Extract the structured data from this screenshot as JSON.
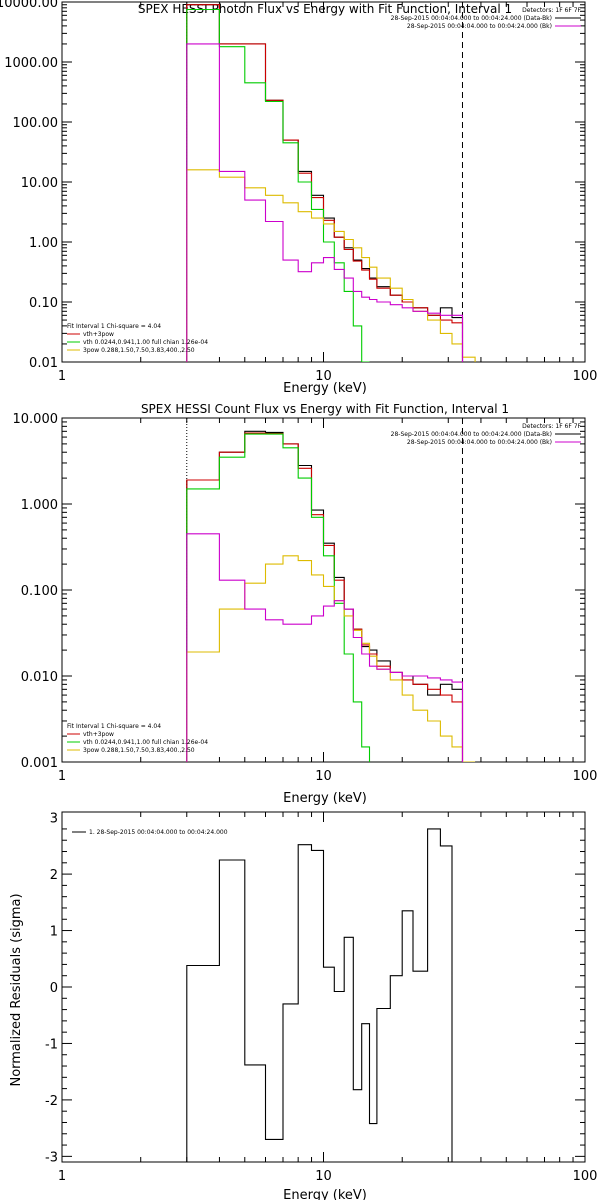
{
  "chart_data": [
    {
      "type": "line",
      "title": "SPEX HESSI Photon Flux vs Energy with Fit Function, Interval 1",
      "xlabel": "Energy (keV)",
      "ylabel": "",
      "xscale": "log",
      "yscale": "log",
      "xlim": [
        1,
        100
      ],
      "ylim": [
        0.01,
        10000
      ],
      "xticks": [
        1,
        10,
        100
      ],
      "xtick_labels": [
        "1",
        "10",
        "100"
      ],
      "yticks": [
        0.01,
        0.1,
        1,
        10,
        100,
        1000,
        10000
      ],
      "ytick_labels": [
        "0.01",
        "0.10",
        "1.00",
        "10.00",
        "100.00",
        "1000.00",
        "10000.00"
      ],
      "vlines": [
        {
          "x": 3,
          "style": "dotted"
        },
        {
          "x": 34,
          "style": "dashed"
        }
      ],
      "legend_topright": {
        "header": "Detectors: 1F 6F 7F",
        "entries": [
          {
            "text": "28-Sep-2015 00:04:04.000 to 00:04:24.000 (Data-Bk)",
            "color": "#000000"
          },
          {
            "text": "28-Sep-2015 00:04:04.000 to 00:04:24.000 (Bk)",
            "color": "#cc00cc"
          }
        ]
      },
      "legend_bottomleft": {
        "header": "Fit Interval 1   Chi-square = 4.04",
        "entries": [
          {
            "text": "vth+3pow",
            "color": "#cc0000"
          },
          {
            "text": "vth 0.0244,0.941,1.00  full chian 1.26e-04",
            "color": "#00cc00"
          },
          {
            "text": "3pow 0.288,1.50,7.50,3.83,400.,2.50",
            "color": "#ddbb00"
          }
        ]
      },
      "edges": [
        3,
        4,
        5,
        6,
        7,
        8,
        9,
        10,
        11,
        12,
        13,
        14,
        15,
        16,
        18,
        20,
        22,
        25,
        28,
        31,
        34,
        38,
        42
      ],
      "series": [
        {
          "name": "Data-Bk",
          "color": "#000000",
          "values": [
            9000,
            2000,
            2000,
            230,
            50,
            15,
            6,
            2.5,
            1.2,
            0.8,
            0.5,
            0.36,
            0.25,
            0.18,
            0.13,
            0.1,
            0.08,
            0.06,
            0.08,
            0.055,
            null,
            null
          ]
        },
        {
          "name": "vth+3pow",
          "color": "#cc0000",
          "values": [
            9000,
            2000,
            2000,
            230,
            50,
            14,
            5.5,
            2.3,
            1.2,
            0.75,
            0.48,
            0.34,
            0.24,
            0.17,
            0.13,
            0.1,
            0.08,
            0.06,
            0.05,
            0.045,
            null,
            null
          ]
        },
        {
          "name": "vth",
          "color": "#00cc00",
          "values": [
            7500,
            1800,
            450,
            220,
            45,
            10,
            3.5,
            1.0,
            0.45,
            0.15,
            0.04,
            0.01,
            null,
            null,
            null,
            null,
            null,
            null,
            null,
            null,
            null,
            null
          ]
        },
        {
          "name": "3pow",
          "color": "#ddbb00",
          "values": [
            16,
            12,
            8,
            6,
            4.5,
            3.2,
            2.5,
            2.0,
            1.5,
            1.1,
            0.8,
            0.55,
            0.38,
            0.25,
            0.17,
            0.11,
            0.07,
            0.05,
            0.03,
            0.02,
            0.012,
            null
          ]
        },
        {
          "name": "Bk",
          "color": "#cc00cc",
          "values": [
            2000,
            15,
            5,
            2.2,
            0.5,
            0.32,
            0.45,
            0.55,
            0.35,
            0.25,
            0.15,
            0.12,
            0.11,
            0.1,
            0.09,
            0.08,
            0.07,
            0.065,
            0.06,
            0.06,
            null,
            null
          ]
        }
      ]
    },
    {
      "type": "line",
      "title": "SPEX HESSI Count Flux vs Energy with Fit Function, Interval 1",
      "xlabel": "Energy (keV)",
      "ylabel": "",
      "xscale": "log",
      "yscale": "log",
      "xlim": [
        1,
        100
      ],
      "ylim": [
        0.001,
        10
      ],
      "xticks": [
        1,
        10,
        100
      ],
      "xtick_labels": [
        "1",
        "10",
        "100"
      ],
      "yticks": [
        0.001,
        0.01,
        0.1,
        1,
        10
      ],
      "ytick_labels": [
        "0.001",
        "0.010",
        "0.100",
        "1.000",
        "10.000"
      ],
      "vlines": [
        {
          "x": 3,
          "style": "dotted"
        },
        {
          "x": 34,
          "style": "dashed"
        }
      ],
      "legend_topright": {
        "header": "Detectors: 1F 6F 7F",
        "entries": [
          {
            "text": "28-Sep-2015 00:04:04.000 to 00:04:24.000 (Data-Bk)",
            "color": "#000000"
          },
          {
            "text": "28-Sep-2015 00:04:04.000 to 00:04:24.000 (Bk)",
            "color": "#cc00cc"
          }
        ]
      },
      "legend_bottomleft": {
        "header": "Fit Interval 1   Chi-square = 4.04",
        "entries": [
          {
            "text": "vth+3pow",
            "color": "#cc0000"
          },
          {
            "text": "vth 0.0244,0.941,1.00  full chian 1.26e-04",
            "color": "#00cc00"
          },
          {
            "text": "3pow 0.288,1.50,7.50,3.83,400.,2.50",
            "color": "#ddbb00"
          }
        ]
      },
      "edges": [
        3,
        4,
        5,
        6,
        7,
        8,
        9,
        10,
        11,
        12,
        13,
        14,
        15,
        16,
        18,
        20,
        22,
        25,
        28,
        31,
        34,
        38,
        42
      ],
      "series": [
        {
          "name": "Data-Bk",
          "color": "#000000",
          "values": [
            1.9,
            4.0,
            7.0,
            6.8,
            5.0,
            2.8,
            0.85,
            0.35,
            0.14,
            0.06,
            0.035,
            0.022,
            0.02,
            0.015,
            0.011,
            0.01,
            0.008,
            0.006,
            0.008,
            0.007,
            null,
            null
          ]
        },
        {
          "name": "vth+3pow",
          "color": "#cc0000",
          "values": [
            1.9,
            4.0,
            6.7,
            6.6,
            5.0,
            2.6,
            0.75,
            0.33,
            0.13,
            0.06,
            0.035,
            0.023,
            0.018,
            0.013,
            0.011,
            0.009,
            0.008,
            0.007,
            0.006,
            0.005,
            null,
            null
          ]
        },
        {
          "name": "vth",
          "color": "#00cc00",
          "values": [
            1.5,
            3.5,
            6.5,
            6.5,
            4.5,
            2.0,
            0.7,
            0.25,
            0.07,
            0.018,
            0.005,
            0.0015,
            null,
            null,
            null,
            null,
            null,
            null,
            null,
            null,
            null,
            null
          ]
        },
        {
          "name": "3pow",
          "color": "#ddbb00",
          "values": [
            0.019,
            0.06,
            0.12,
            0.2,
            0.25,
            0.22,
            0.15,
            0.11,
            0.075,
            0.05,
            0.034,
            0.024,
            0.017,
            0.012,
            0.009,
            0.006,
            0.004,
            0.003,
            0.002,
            0.0015,
            0.001,
            null
          ]
        },
        {
          "name": "Bk",
          "color": "#cc00cc",
          "values": [
            0.45,
            0.13,
            0.06,
            0.045,
            0.04,
            0.04,
            0.05,
            0.065,
            0.075,
            0.06,
            0.028,
            0.018,
            0.013,
            0.012,
            0.011,
            0.01,
            0.01,
            0.0095,
            0.009,
            0.0085,
            null,
            null
          ]
        }
      ]
    },
    {
      "type": "line",
      "title": "",
      "xlabel": "Energy (keV)",
      "ylabel": "Normalized Residuals (sigma)",
      "xscale": "log",
      "yscale": "linear",
      "xlim": [
        1,
        100
      ],
      "ylim": [
        -3.1,
        3.1
      ],
      "xticks": [
        1,
        10,
        100
      ],
      "xtick_labels": [
        "1",
        "10",
        "100"
      ],
      "yticks": [
        -3,
        -2,
        -1,
        0,
        1,
        2,
        3
      ],
      "ytick_labels": [
        "-3",
        "-2",
        "-1",
        "0",
        "1",
        "2",
        "3"
      ],
      "vlines": [],
      "legend_topleft": {
        "entries": [
          {
            "text": "1. 28-Sep-2015 00:04:04.000 to 00:04:24.000",
            "color": "#000000"
          }
        ]
      },
      "edges": [
        3,
        4,
        5,
        6,
        7,
        8,
        9,
        10,
        11,
        12,
        13,
        14,
        15,
        16,
        18,
        20,
        22,
        25,
        28,
        31,
        34
      ],
      "series": [
        {
          "name": "1. 28-Sep-2015 00:04:04.000 to 00:04:24.000",
          "color": "#000000",
          "values": [
            0.38,
            2.25,
            -1.38,
            -2.7,
            -0.3,
            2.52,
            2.42,
            0.35,
            -0.08,
            0.88,
            -1.82,
            -0.65,
            -2.42,
            -0.38,
            0.2,
            1.35,
            0.28,
            2.8,
            2.5,
            null
          ]
        }
      ]
    }
  ]
}
